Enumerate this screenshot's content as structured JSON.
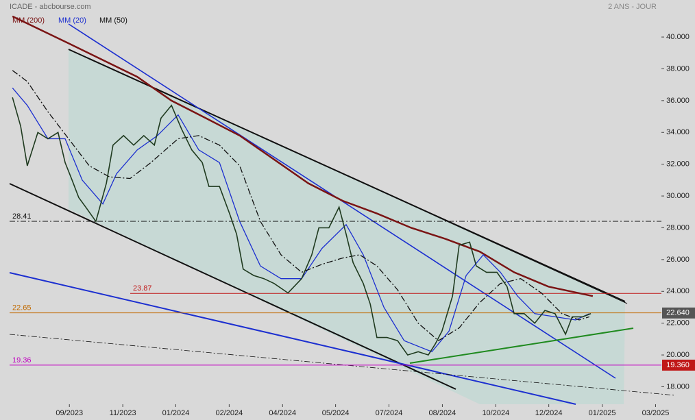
{
  "chart_data": {
    "type": "line",
    "title": "ICADE - abcbourse.com",
    "subtitle": "2 ANS - JOUR",
    "color": "#1f3a1f",
    "x": [
      2023.521,
      2023.542,
      2023.559,
      2023.586,
      2023.612,
      2023.638,
      2023.656,
      2023.674,
      2023.691,
      2023.709,
      2023.735,
      2023.762,
      2023.779,
      2023.806,
      2023.832,
      2023.858,
      2023.885,
      2023.902,
      2023.929,
      2023.955,
      2023.981,
      2024.008,
      2024.025,
      2024.052,
      2024.078,
      2024.096,
      2024.113,
      2024.14,
      2024.166,
      2024.192,
      2024.228,
      2024.263,
      2024.289,
      2024.307,
      2024.333,
      2024.359,
      2024.377,
      2024.395,
      2024.421,
      2024.439,
      2024.456,
      2024.482,
      2024.509,
      2024.535,
      2024.562,
      2024.588,
      2024.606,
      2024.623,
      2024.65,
      2024.667,
      2024.694,
      2024.711,
      2024.737,
      2024.764,
      2024.79,
      2024.808,
      2024.834,
      2024.861,
      2024.887,
      2024.913,
      2024.94,
      2024.957,
      2024.984,
      2025.005
    ],
    "values": [
      36.2,
      34.4,
      31.9,
      34.0,
      33.6,
      34.0,
      32.1,
      31.0,
      29.9,
      29.3,
      28.4,
      30.8,
      33.2,
      33.8,
      33.2,
      33.8,
      33.2,
      34.9,
      35.7,
      34.2,
      32.9,
      32.1,
      30.6,
      30.6,
      28.9,
      27.6,
      25.4,
      25.0,
      24.8,
      24.5,
      23.9,
      24.8,
      26.3,
      28.0,
      28.0,
      29.3,
      27.6,
      25.8,
      24.5,
      23.2,
      21.1,
      21.1,
      20.9,
      20.0,
      20.2,
      20.0,
      20.7,
      21.5,
      23.7,
      26.9,
      27.1,
      25.6,
      25.2,
      25.2,
      24.3,
      22.6,
      22.6,
      22.0,
      22.8,
      22.6,
      21.3,
      22.4,
      22.4,
      22.6
    ],
    "series": [
      {
        "name": "MM (200)",
        "color": "#7a1414",
        "x": [
          2023.521,
          2023.665,
          2023.841,
          2023.929,
          2024.017,
          2024.104,
          2024.192,
          2024.28,
          2024.368,
          2024.456,
          2024.544,
          2024.632,
          2024.72,
          2024.808,
          2024.896,
          2025.01
        ],
        "values": [
          41.3,
          39.6,
          37.5,
          36.0,
          34.9,
          33.8,
          32.3,
          30.8,
          29.7,
          28.9,
          28.0,
          27.3,
          26.5,
          25.2,
          24.3,
          23.7
        ]
      },
      {
        "name": "MM (20)",
        "color": "#1c2fd0",
        "x": [
          2023.521,
          2023.559,
          2023.612,
          2023.656,
          2023.7,
          2023.753,
          2023.788,
          2023.841,
          2023.893,
          2023.946,
          2023.999,
          2024.052,
          2024.104,
          2024.157,
          2024.21,
          2024.263,
          2024.315,
          2024.377,
          2024.421,
          2024.474,
          2024.526,
          2024.597,
          2024.641,
          2024.685,
          2024.729,
          2024.773,
          2024.817,
          2024.861,
          2024.913,
          2024.966,
          2025.001
        ],
        "values": [
          36.8,
          35.7,
          33.6,
          33.6,
          31.0,
          29.5,
          31.4,
          32.9,
          33.8,
          35.1,
          32.9,
          32.1,
          28.4,
          25.6,
          24.8,
          24.8,
          26.7,
          28.2,
          26.3,
          23.0,
          20.9,
          20.2,
          21.5,
          25.0,
          26.3,
          25.2,
          23.7,
          22.6,
          22.4,
          22.2,
          22.6
        ]
      },
      {
        "name": "MM (50)",
        "color": "#111111",
        "x": [
          2023.521,
          2023.559,
          2023.612,
          2023.665,
          2023.718,
          2023.77,
          2023.823,
          2023.876,
          2023.946,
          2023.999,
          2024.052,
          2024.104,
          2024.157,
          2024.21,
          2024.263,
          2024.315,
          2024.368,
          2024.412,
          2024.456,
          2024.509,
          2024.562,
          2024.614,
          2024.667,
          2024.72,
          2024.773,
          2024.825,
          2024.878,
          2024.931,
          2024.975,
          2025.001
        ],
        "values": [
          37.9,
          37.2,
          35.3,
          33.6,
          31.9,
          31.2,
          31.1,
          32.1,
          33.6,
          33.8,
          33.2,
          31.9,
          28.4,
          26.3,
          25.2,
          25.7,
          26.1,
          26.3,
          25.6,
          24.1,
          22.0,
          20.9,
          21.7,
          23.3,
          24.5,
          24.8,
          23.9,
          22.6,
          22.2,
          22.4
        ]
      }
    ],
    "levels": [
      {
        "value": 28.41,
        "color": "#111111"
      },
      {
        "value": 23.87,
        "color": "#c01818"
      },
      {
        "value": 22.65,
        "color": "#c06a00"
      },
      {
        "value": 19.36,
        "color": "#c000c0"
      }
    ],
    "tags": [
      {
        "value": 22.64,
        "label": "22.640",
        "color": "#555555"
      },
      {
        "value": 19.36,
        "label": "19.360",
        "color": "#c01818"
      }
    ],
    "xlim": [
      2023.489,
      2025.186
    ],
    "xticks": [
      {
        "value": 2023.667,
        "label": "09/2023"
      },
      {
        "value": 2023.804,
        "label": "11/2023"
      },
      {
        "value": 2023.94,
        "label": "01/2024"
      },
      {
        "value": 2024.077,
        "label": "02/2024"
      },
      {
        "value": 2024.214,
        "label": "04/2024"
      },
      {
        "value": 2024.35,
        "label": "05/2024"
      },
      {
        "value": 2024.487,
        "label": "07/2024"
      },
      {
        "value": 2024.624,
        "label": "08/2024"
      },
      {
        "value": 2024.761,
        "label": "10/2024"
      },
      {
        "value": 2024.897,
        "label": "12/2024"
      },
      {
        "value": 2025.034,
        "label": "01/2025"
      },
      {
        "value": 2025.171,
        "label": "03/2025"
      }
    ],
    "ylim": [
      16.9,
      42.33
    ],
    "yticks": [
      {
        "value": 18,
        "label": "18.000"
      },
      {
        "value": 20,
        "label": "20.000"
      },
      {
        "value": 22,
        "label": "22.000"
      },
      {
        "value": 24,
        "label": "24.000"
      },
      {
        "value": 26,
        "label": "26.000"
      },
      {
        "value": 28,
        "label": "28.000"
      },
      {
        "value": 30,
        "label": "30.000"
      },
      {
        "value": 32,
        "label": "32.000"
      },
      {
        "value": 34,
        "label": "34.000"
      },
      {
        "value": 36,
        "label": "36.000"
      },
      {
        "value": 38,
        "label": "38.000"
      },
      {
        "value": 40,
        "label": "40.000"
      }
    ]
  }
}
